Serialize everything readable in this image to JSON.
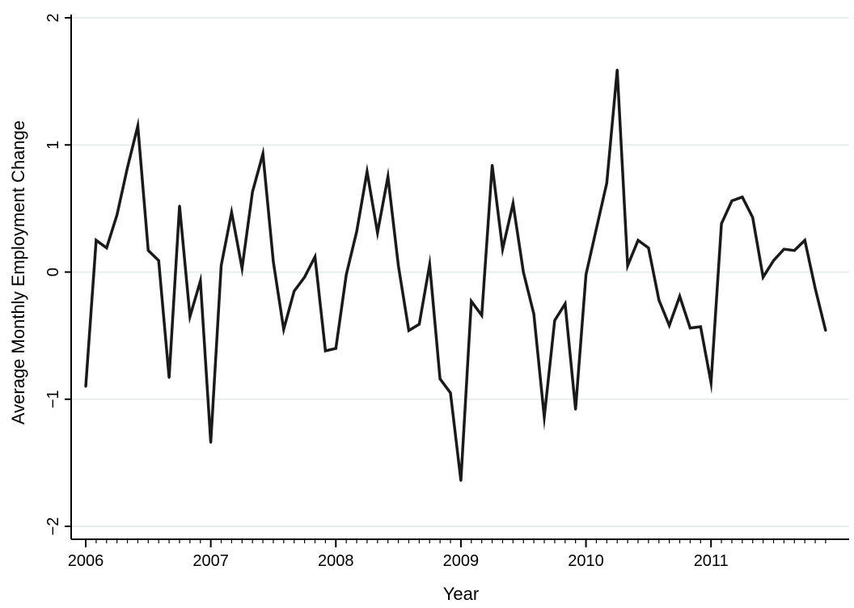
{
  "chart_data": {
    "type": "line",
    "title": "",
    "xlabel": "Year",
    "ylabel": "Average Monthly Employment Change",
    "xlim": [
      2006.0,
      2011.917
    ],
    "ylim": [
      -2,
      2
    ],
    "grid": true,
    "legend": "none",
    "x_ticks": [
      {
        "value": 2006,
        "label": "2006"
      },
      {
        "value": 2007,
        "label": "2007"
      },
      {
        "value": 2008,
        "label": "2008"
      },
      {
        "value": 2009,
        "label": "2009"
      },
      {
        "value": 2010,
        "label": "2010"
      },
      {
        "value": 2011,
        "label": "2011"
      }
    ],
    "y_ticks": [
      {
        "value": 2,
        "label": "2"
      },
      {
        "value": 1,
        "label": "1"
      },
      {
        "value": 0,
        "label": "0"
      },
      {
        "value": -1,
        "label": "−1"
      },
      {
        "value": -2,
        "label": "−2"
      }
    ],
    "colors": {
      "line": "#1a1a1a",
      "grid": "#e8eeee",
      "axis": "#000000"
    },
    "x": [
      "2006-01",
      "2006-02",
      "2006-03",
      "2006-04",
      "2006-05",
      "2006-06",
      "2006-07",
      "2006-08",
      "2006-09",
      "2006-10",
      "2006-11",
      "2006-12",
      "2007-01",
      "2007-02",
      "2007-03",
      "2007-04",
      "2007-05",
      "2007-06",
      "2007-07",
      "2007-08",
      "2007-09",
      "2007-10",
      "2007-11",
      "2007-12",
      "2008-01",
      "2008-02",
      "2008-03",
      "2008-04",
      "2008-05",
      "2008-06",
      "2008-07",
      "2008-08",
      "2008-09",
      "2008-10",
      "2008-11",
      "2008-12",
      "2009-01",
      "2009-02",
      "2009-03",
      "2009-04",
      "2009-05",
      "2009-06",
      "2009-07",
      "2009-08",
      "2009-09",
      "2009-10",
      "2009-11",
      "2009-12",
      "2010-01",
      "2010-02",
      "2010-03",
      "2010-04",
      "2010-05",
      "2010-06",
      "2010-07",
      "2010-08",
      "2010-09",
      "2010-10",
      "2010-11",
      "2010-12",
      "2011-01",
      "2011-02",
      "2011-03",
      "2011-04",
      "2011-05",
      "2011-06",
      "2011-07",
      "2011-08",
      "2011-09",
      "2011-10",
      "2011-11",
      "2011-12"
    ],
    "series": [
      {
        "values": [
          -0.9,
          0.25,
          0.19,
          0.45,
          0.82,
          1.15,
          0.17,
          0.09,
          -0.83,
          0.52,
          -0.35,
          -0.07,
          -1.34,
          0.05,
          0.47,
          0.03,
          0.63,
          0.93,
          0.08,
          -0.45,
          -0.15,
          -0.04,
          0.12,
          -0.62,
          -0.6,
          -0.02,
          0.32,
          0.79,
          0.31,
          0.75,
          0.05,
          -0.46,
          -0.41,
          0.06,
          -0.84,
          -0.95,
          -1.64,
          -0.23,
          -0.34,
          0.84,
          0.18,
          0.54,
          0.0,
          -0.33,
          -1.14,
          -0.38,
          -0.25,
          -1.08,
          -0.02,
          0.34,
          0.7,
          1.59,
          0.05,
          0.25,
          0.19,
          -0.22,
          -0.42,
          -0.19,
          -0.44,
          -0.43,
          -0.87,
          0.38,
          0.56,
          0.59,
          0.43,
          -0.04,
          0.09,
          0.18,
          0.17,
          0.25,
          -0.13,
          -0.46
        ]
      }
    ]
  }
}
